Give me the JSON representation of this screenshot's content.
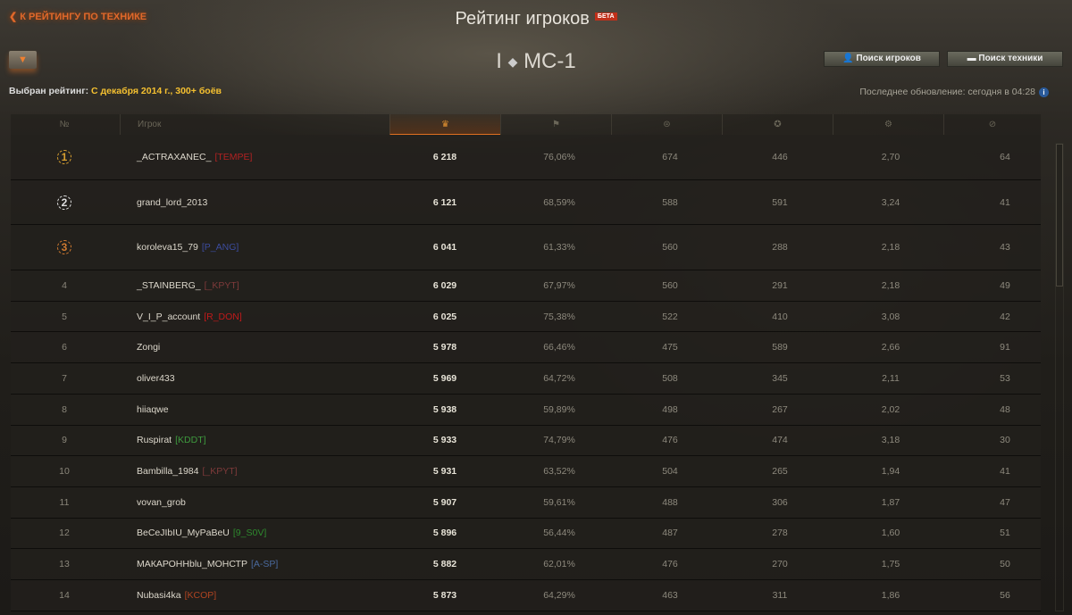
{
  "header": {
    "back_link": "К РЕЙТИНГУ ПО ТЕХНИКЕ",
    "title": "Рейтинг игроков",
    "beta_badge": "БЕТА",
    "tank_tier": "I",
    "tank_name": "МС-1",
    "selected_label": "Выбран рейтинг:",
    "selected_value": "С декабря 2014 г., 300+ боёв",
    "search_players": "Поиск игроков",
    "search_vehicles": "Поиск техники",
    "last_update": "Последнее обновление: сегодня в 04:28"
  },
  "table": {
    "columns": [
      "№",
      "Игрок"
    ],
    "column_icons": [
      "rating-laurel-icon",
      "flag-icon",
      "damage-icon",
      "star-icon",
      "frags-icon",
      "spotted-icon"
    ],
    "rows": [
      {
        "n": "1",
        "player": "_ACTRAXANEC_",
        "clan": "[TEMPE]",
        "clan_color": "#b02222",
        "rating": "6 218",
        "win": "76,06%",
        "dmg": "674",
        "xp": "446",
        "frags": "2,70",
        "spot": "64"
      },
      {
        "n": "2",
        "player": "grand_lord_2013",
        "clan": "",
        "clan_color": "",
        "rating": "6 121",
        "win": "68,59%",
        "dmg": "588",
        "xp": "591",
        "frags": "3,24",
        "spot": "41"
      },
      {
        "n": "3",
        "player": "koroleva15_79",
        "clan": "[P_ANG]",
        "clan_color": "#3c4c9e",
        "rating": "6 041",
        "win": "61,33%",
        "dmg": "560",
        "xp": "288",
        "frags": "2,18",
        "spot": "43"
      },
      {
        "n": "4",
        "player": "_STAINBERG_",
        "clan": "[_KPYT]",
        "clan_color": "#7e3a3a",
        "rating": "6 029",
        "win": "67,97%",
        "dmg": "560",
        "xp": "291",
        "frags": "2,18",
        "spot": "49"
      },
      {
        "n": "5",
        "player": "V_I_P_account",
        "clan": "[R_DON]",
        "clan_color": "#c01a1a",
        "rating": "6 025",
        "win": "75,38%",
        "dmg": "522",
        "xp": "410",
        "frags": "3,08",
        "spot": "42"
      },
      {
        "n": "6",
        "player": "Zongi",
        "clan": "",
        "clan_color": "",
        "rating": "5 978",
        "win": "66,46%",
        "dmg": "475",
        "xp": "589",
        "frags": "2,66",
        "spot": "91"
      },
      {
        "n": "7",
        "player": "oliver433",
        "clan": "",
        "clan_color": "",
        "rating": "5 969",
        "win": "64,72%",
        "dmg": "508",
        "xp": "345",
        "frags": "2,11",
        "spot": "53"
      },
      {
        "n": "8",
        "player": "hiiaqwe",
        "clan": "",
        "clan_color": "",
        "rating": "5 938",
        "win": "59,89%",
        "dmg": "498",
        "xp": "267",
        "frags": "2,02",
        "spot": "48"
      },
      {
        "n": "9",
        "player": "Ruspirat",
        "clan": "[KDDT]",
        "clan_color": "#3e9a3e",
        "rating": "5 933",
        "win": "74,79%",
        "dmg": "476",
        "xp": "474",
        "frags": "3,18",
        "spot": "30"
      },
      {
        "n": "10",
        "player": "Bambilla_1984",
        "clan": "[_KPYT]",
        "clan_color": "#7e3a3a",
        "rating": "5 931",
        "win": "63,52%",
        "dmg": "504",
        "xp": "265",
        "frags": "1,94",
        "spot": "41"
      },
      {
        "n": "11",
        "player": "vovan_grob",
        "clan": "",
        "clan_color": "",
        "rating": "5 907",
        "win": "59,61%",
        "dmg": "488",
        "xp": "306",
        "frags": "1,87",
        "spot": "47"
      },
      {
        "n": "12",
        "player": "BeCeJIbIU_MyPaBeU",
        "clan": "[9_S0V]",
        "clan_color": "#2e8a2e",
        "rating": "5 896",
        "win": "56,44%",
        "dmg": "487",
        "xp": "278",
        "frags": "1,60",
        "spot": "51"
      },
      {
        "n": "13",
        "player": "МАКАРОННblu_МОНСТР",
        "clan": "[A-SP]",
        "clan_color": "#4a6a9e",
        "rating": "5 882",
        "win": "62,01%",
        "dmg": "476",
        "xp": "270",
        "frags": "1,75",
        "spot": "50"
      },
      {
        "n": "14",
        "player": "Nubasi4ka",
        "clan": "[KCOP]",
        "clan_color": "#b04422",
        "rating": "5 873",
        "win": "64,29%",
        "dmg": "463",
        "xp": "311",
        "frags": "1,86",
        "spot": "56"
      }
    ]
  },
  "colors": {
    "accent": "#e0682a",
    "gold": "#f5c030",
    "medal_1": "#d8a030",
    "medal_2": "#e0e0e0",
    "medal_3": "#d07a30"
  }
}
